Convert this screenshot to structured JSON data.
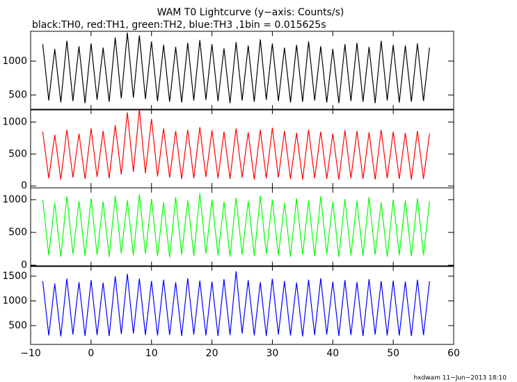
{
  "title": "WAM T0 Lightcurve (y−axis: Counts/s)",
  "subtitle": "black:TH0, red:TH1, green:TH2, blue:TH3 ,1bin = 0.015625s",
  "footer": "hxdwam 11−Jun−2013 18:10",
  "chart_data": [
    {
      "type": "line",
      "xlim": [
        -10,
        60
      ],
      "ylim": [
        280,
        1440
      ],
      "yticks": [
        500,
        1000
      ],
      "x": [
        -8,
        -7,
        -6,
        -5,
        -4,
        -3,
        -2,
        -1,
        0,
        1,
        2,
        3,
        4,
        5,
        6,
        7,
        8,
        9,
        10,
        11,
        12,
        13,
        14,
        15,
        16,
        17,
        18,
        19,
        20,
        21,
        22,
        23,
        24,
        25,
        26,
        27,
        28,
        29,
        30,
        31,
        32,
        33,
        34,
        35,
        36,
        37,
        38,
        39,
        40,
        41,
        42,
        43,
        44,
        45,
        46,
        47,
        48,
        49,
        50,
        51,
        52,
        53,
        54,
        55,
        56
      ],
      "series": [
        {
          "color": "#000000",
          "values": [
            1250,
            420,
            1180,
            390,
            1300,
            410,
            1220,
            380,
            1260,
            430,
            1200,
            400,
            1350,
            450,
            1420,
            460,
            1380,
            440,
            1290,
            410,
            1240,
            400,
            1210,
            390,
            1270,
            420,
            1310,
            430,
            1250,
            410,
            1190,
            380,
            1280,
            420,
            1230,
            400,
            1320,
            430,
            1260,
            410,
            1200,
            390,
            1240,
            400,
            1290,
            420,
            1220,
            390,
            1180,
            380,
            1250,
            410,
            1270,
            400,
            1210,
            380,
            1300,
            420,
            1240,
            390,
            1230,
            400,
            1260,
            410,
            1200
          ]
        }
      ]
    },
    {
      "type": "line",
      "xlim": [
        -10,
        60
      ],
      "ylim": [
        -30,
        1200
      ],
      "yticks": [
        0,
        500,
        1000
      ],
      "x": [
        -8,
        -7,
        -6,
        -5,
        -4,
        -3,
        -2,
        -1,
        0,
        1,
        2,
        3,
        4,
        5,
        6,
        7,
        8,
        9,
        10,
        11,
        12,
        13,
        14,
        15,
        16,
        17,
        18,
        19,
        20,
        21,
        22,
        23,
        24,
        25,
        26,
        27,
        28,
        29,
        30,
        31,
        32,
        33,
        34,
        35,
        36,
        37,
        38,
        39,
        40,
        41,
        42,
        43,
        44,
        45,
        46,
        47,
        48,
        49,
        50,
        51,
        52,
        53,
        54,
        55,
        56
      ],
      "series": [
        {
          "color": "#ff0000",
          "values": [
            850,
            120,
            800,
            100,
            880,
            130,
            820,
            110,
            900,
            140,
            860,
            120,
            950,
            180,
            1150,
            220,
            1200,
            200,
            1050,
            150,
            900,
            130,
            860,
            110,
            880,
            120,
            920,
            140,
            870,
            120,
            850,
            110,
            900,
            130,
            840,
            100,
            880,
            120,
            910,
            130,
            860,
            110,
            830,
            100,
            880,
            120,
            850,
            110,
            820,
            100,
            870,
            120,
            860,
            110,
            840,
            100,
            880,
            120,
            850,
            110,
            830,
            100,
            860,
            110,
            820
          ]
        }
      ]
    },
    {
      "type": "line",
      "xlim": [
        -10,
        60
      ],
      "ylim": [
        -20,
        1180
      ],
      "yticks": [
        0,
        500,
        1000
      ],
      "x": [
        -8,
        -7,
        -6,
        -5,
        -4,
        -3,
        -2,
        -1,
        0,
        1,
        2,
        3,
        4,
        5,
        6,
        7,
        8,
        9,
        10,
        11,
        12,
        13,
        14,
        15,
        16,
        17,
        18,
        19,
        20,
        21,
        22,
        23,
        24,
        25,
        26,
        27,
        28,
        29,
        30,
        31,
        32,
        33,
        34,
        35,
        36,
        37,
        38,
        39,
        40,
        41,
        42,
        43,
        44,
        45,
        46,
        47,
        48,
        49,
        50,
        51,
        52,
        53,
        54,
        55,
        56
      ],
      "series": [
        {
          "color": "#00ff00",
          "values": [
            1000,
            150,
            950,
            130,
            1050,
            170,
            980,
            140,
            1020,
            160,
            970,
            130,
            1060,
            180,
            990,
            150,
            1080,
            170,
            1010,
            140,
            960,
            120,
            1040,
            160,
            990,
            140,
            1100,
            180,
            1000,
            150,
            970,
            130,
            1030,
            160,
            980,
            140,
            1060,
            170,
            1000,
            150,
            950,
            130,
            1020,
            160,
            990,
            140,
            1050,
            170,
            970,
            130,
            1010,
            150,
            980,
            140,
            1040,
            160,
            960,
            130,
            1000,
            150,
            990,
            140,
            1020,
            150,
            980
          ]
        }
      ]
    },
    {
      "type": "line",
      "xlim": [
        -10,
        60
      ],
      "ylim": [
        120,
        1710
      ],
      "yticks": [
        500,
        1000,
        1500
      ],
      "xticks": [
        {
          "value": -10,
          "label": "−10"
        },
        0,
        10,
        20,
        30,
        40,
        50,
        60
      ],
      "x": [
        -8,
        -7,
        -6,
        -5,
        -4,
        -3,
        -2,
        -1,
        0,
        1,
        2,
        3,
        4,
        5,
        6,
        7,
        8,
        9,
        10,
        11,
        12,
        13,
        14,
        15,
        16,
        17,
        18,
        19,
        20,
        21,
        22,
        23,
        24,
        25,
        26,
        27,
        28,
        29,
        30,
        31,
        32,
        33,
        34,
        35,
        36,
        37,
        38,
        39,
        40,
        41,
        42,
        43,
        44,
        45,
        46,
        47,
        48,
        49,
        50,
        51,
        52,
        53,
        54,
        55,
        56
      ],
      "series": [
        {
          "color": "#0000ff",
          "values": [
            1400,
            300,
            1350,
            280,
            1450,
            320,
            1380,
            290,
            1420,
            310,
            1370,
            290,
            1500,
            330,
            1550,
            340,
            1450,
            310,
            1400,
            300,
            1430,
            310,
            1380,
            290,
            1460,
            320,
            1410,
            300,
            1390,
            290,
            1440,
            310,
            1600,
            340,
            1420,
            300,
            1380,
            290,
            1450,
            320,
            1400,
            300,
            1370,
            280,
            1430,
            310,
            1460,
            320,
            1390,
            290,
            1420,
            310,
            1380,
            290,
            1440,
            320,
            1400,
            300,
            1410,
            300,
            1390,
            290,
            1430,
            310,
            1400
          ]
        }
      ]
    }
  ]
}
